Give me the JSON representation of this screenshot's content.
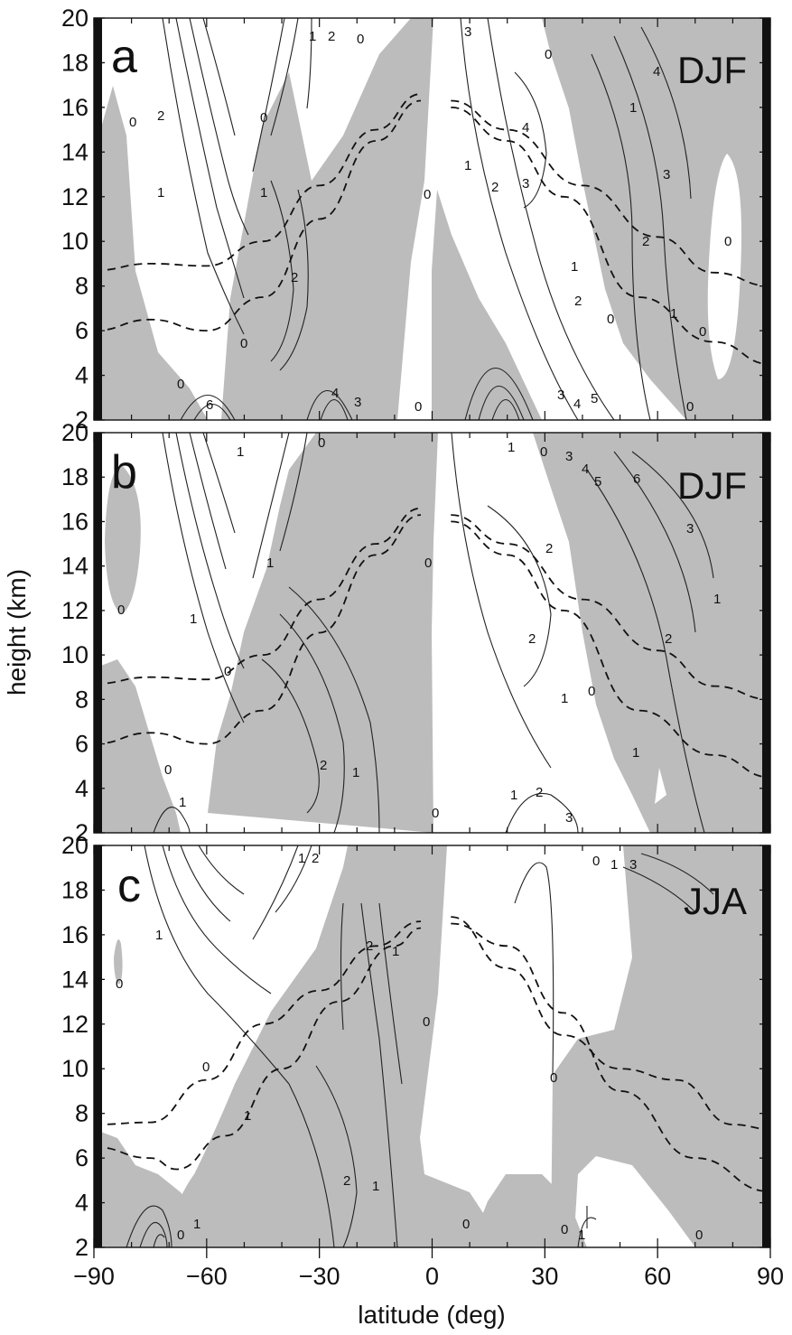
{
  "chart_data": {
    "type": "contour",
    "xlabel": "latitude (deg)",
    "ylabel": "height (km)",
    "xlim": [
      -90,
      90
    ],
    "ylim": [
      2,
      20
    ],
    "x_ticks": [
      -90,
      -60,
      -30,
      0,
      30,
      60,
      90
    ],
    "x_tick_labels": [
      "−90",
      "−60",
      "−30",
      "0",
      "30",
      "60",
      "90"
    ],
    "y_ticks": [
      2,
      4,
      6,
      8,
      10,
      12,
      14,
      16,
      18,
      20
    ],
    "shading": "negative values shaded grey",
    "panels": [
      {
        "letter": "a",
        "season": "DJF",
        "contour_labels": [
          "0",
          "1",
          "2",
          "3",
          "4",
          "5",
          "6"
        ],
        "tropopause_left": [
          [
            -90,
            8.7
          ],
          [
            -75,
            9.0
          ],
          [
            -60,
            8.9
          ],
          [
            -45,
            10.0
          ],
          [
            -30,
            12.5
          ],
          [
            -15,
            15.0
          ],
          [
            -3,
            16.6
          ]
        ],
        "tropopause_right": [
          [
            5,
            16.3
          ],
          [
            20,
            15.0
          ],
          [
            40,
            12.5
          ],
          [
            60,
            10.2
          ],
          [
            75,
            8.6
          ],
          [
            90,
            8.0
          ]
        ],
        "lower_left": [
          [
            -90,
            6.0
          ],
          [
            -75,
            6.5
          ],
          [
            -60,
            6.0
          ],
          [
            -45,
            7.5
          ],
          [
            -30,
            11.0
          ],
          [
            -15,
            14.5
          ],
          [
            -3,
            16.3
          ]
        ],
        "lower_right": [
          [
            5,
            16.0
          ],
          [
            20,
            14.5
          ],
          [
            35,
            12.0
          ],
          [
            55,
            7.5
          ],
          [
            75,
            5.5
          ],
          [
            90,
            4.5
          ]
        ]
      },
      {
        "letter": "b",
        "season": "DJF",
        "contour_labels": [
          "0",
          "1",
          "2",
          "3",
          "4",
          "5",
          "6"
        ],
        "tropopause_left": [
          [
            -90,
            8.7
          ],
          [
            -75,
            9.0
          ],
          [
            -60,
            8.9
          ],
          [
            -45,
            10.0
          ],
          [
            -30,
            12.5
          ],
          [
            -15,
            15.0
          ],
          [
            -3,
            16.6
          ]
        ],
        "tropopause_right": [
          [
            5,
            16.3
          ],
          [
            20,
            15.0
          ],
          [
            40,
            12.5
          ],
          [
            60,
            10.2
          ],
          [
            75,
            8.6
          ],
          [
            90,
            8.0
          ]
        ],
        "lower_left": [
          [
            -90,
            6.0
          ],
          [
            -75,
            6.5
          ],
          [
            -60,
            6.0
          ],
          [
            -45,
            7.5
          ],
          [
            -30,
            11.0
          ],
          [
            -15,
            14.5
          ],
          [
            -3,
            16.3
          ]
        ],
        "lower_right": [
          [
            5,
            16.0
          ],
          [
            20,
            14.5
          ],
          [
            35,
            12.0
          ],
          [
            55,
            7.5
          ],
          [
            75,
            5.5
          ],
          [
            90,
            4.5
          ]
        ]
      },
      {
        "letter": "c",
        "season": "JJA",
        "contour_labels": [
          "0",
          "1",
          "2",
          "3"
        ],
        "tropopause_left": [
          [
            -90,
            7.5
          ],
          [
            -75,
            7.6
          ],
          [
            -60,
            9.5
          ],
          [
            -45,
            12.0
          ],
          [
            -30,
            13.5
          ],
          [
            -15,
            15.5
          ],
          [
            -3,
            16.6
          ]
        ],
        "tropopause_right": [
          [
            5,
            16.8
          ],
          [
            20,
            14.5
          ],
          [
            35,
            11.5
          ],
          [
            50,
            10.0
          ],
          [
            65,
            9.5
          ],
          [
            80,
            7.5
          ],
          [
            90,
            7.3
          ]
        ],
        "lower_left": [
          [
            -90,
            6.5
          ],
          [
            -75,
            6.0
          ],
          [
            -68,
            5.5
          ],
          [
            -55,
            7.0
          ],
          [
            -40,
            10.0
          ],
          [
            -25,
            13.0
          ],
          [
            -10,
            15.5
          ],
          [
            -3,
            16.3
          ]
        ],
        "lower_right": [
          [
            5,
            16.5
          ],
          [
            20,
            15.5
          ],
          [
            35,
            12.5
          ],
          [
            50,
            9.0
          ],
          [
            70,
            6.0
          ],
          [
            90,
            4.5
          ]
        ]
      }
    ]
  }
}
